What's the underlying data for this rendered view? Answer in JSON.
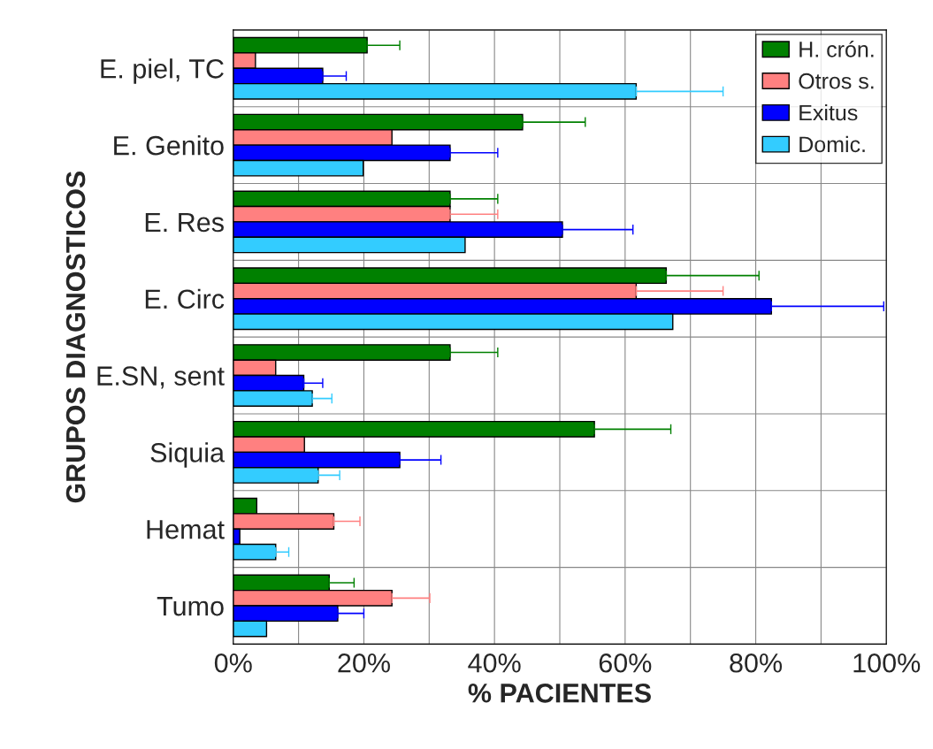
{
  "chart_data": {
    "type": "bar",
    "orientation": "horizontal",
    "xlabel": "% PACIENTES",
    "ylabel": "GRUPOS DIAGNOSTICOS",
    "categories": [
      "E. piel, TC",
      "E. Genito",
      "E. Res",
      "E. Circ",
      "E.SN, sent",
      "Siquia",
      "Hemat",
      "Tumo"
    ],
    "series": [
      {
        "name": "H. crón.",
        "color": "#008000",
        "values": [
          20.5,
          44.3,
          33.2,
          66.3,
          33.2,
          55.3,
          3.6,
          14.7
        ],
        "errors": [
          [
            20.5,
            25.5
          ],
          [
            44.3,
            53.9
          ],
          [
            33.2,
            40.5
          ],
          [
            66.3,
            80.5
          ],
          [
            33.2,
            40.5
          ],
          [
            55.3,
            67
          ],
          null,
          [
            14.7,
            18.5
          ]
        ]
      },
      {
        "name": "Otros s.",
        "color": "#ff8080",
        "values": [
          3.4,
          24.3,
          33.2,
          61.7,
          6.5,
          10.9,
          15.4,
          24.3
        ],
        "errors": [
          null,
          null,
          [
            33.2,
            40.5
          ],
          [
            61.7,
            75
          ],
          null,
          null,
          [
            15.4,
            19.4
          ],
          [
            24.3,
            30.1
          ]
        ]
      },
      {
        "name": "Exitus",
        "color": "#0000ff",
        "values": [
          13.7,
          33.2,
          50.4,
          82.4,
          10.8,
          25.5,
          1,
          16
        ],
        "errors": [
          [
            13.7,
            17.3
          ],
          [
            33.2,
            40.5
          ],
          [
            50.4,
            61.2
          ],
          [
            82.4,
            99.6
          ],
          [
            10.8,
            13.7
          ],
          [
            25.5,
            31.8
          ],
          null,
          [
            16,
            20
          ]
        ]
      },
      {
        "name": "Domic.",
        "color": "#33ccff",
        "values": [
          61.7,
          19.9,
          35.5,
          67.3,
          12.1,
          13,
          6.5,
          5.1
        ],
        "errors": [
          [
            61.7,
            75
          ],
          null,
          null,
          null,
          [
            12.1,
            15.1
          ],
          [
            13,
            16.3
          ],
          [
            6.5,
            8.5
          ],
          null
        ]
      }
    ],
    "xlim": [
      0,
      100
    ],
    "xticks": [
      {
        "value": 0,
        "label": "0%"
      },
      {
        "value": 10,
        "label": null
      },
      {
        "value": 20,
        "label": "20%"
      },
      {
        "value": 30,
        "label": null
      },
      {
        "value": 40,
        "label": "40%"
      },
      {
        "value": 50,
        "label": null
      },
      {
        "value": 60,
        "label": "60%"
      },
      {
        "value": 70,
        "label": null
      },
      {
        "value": 80,
        "label": "80%"
      },
      {
        "value": 90,
        "label": null
      },
      {
        "value": 100,
        "label": "100%"
      }
    ],
    "grid": true,
    "legend": "top right"
  }
}
